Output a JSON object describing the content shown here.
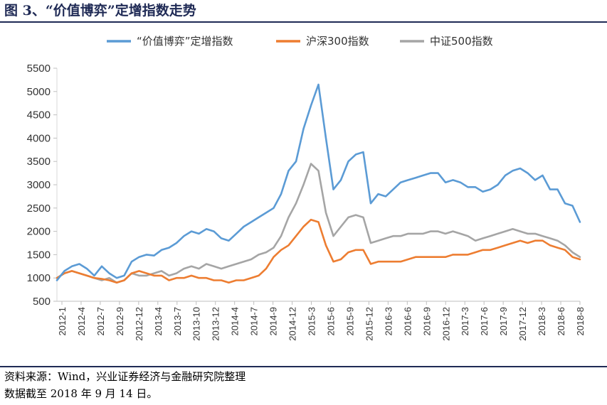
{
  "figure": {
    "title": "图 3、“价值博弈”定增指数走势",
    "source_line1": "资料来源：Wind，兴业证券经济与金融研究院整理",
    "source_line2": "数据截至 2018 年 9 月 14 日。"
  },
  "chart_data": {
    "type": "line",
    "ylim": [
      500,
      5500
    ],
    "yticks": [
      500,
      1000,
      1500,
      2000,
      2500,
      3000,
      3500,
      4000,
      4500,
      5000,
      5500
    ],
    "xticks": [
      "2012-1",
      "2012-4",
      "2012-7",
      "2012-9",
      "2012-12",
      "2013-4",
      "2013-7",
      "2013-10",
      "2013-12",
      "2014-4",
      "2014-7",
      "2014-9",
      "2014-12",
      "2015-3",
      "2015-6",
      "2015-9",
      "2015-12",
      "2016-3",
      "2016-6",
      "2016-9",
      "2016-12",
      "2017-3",
      "2017-6",
      "2017-9",
      "2017-12",
      "2018-3",
      "2018-6",
      "2018-8"
    ],
    "xlabel": "",
    "ylabel": "",
    "legend_position": "top",
    "grid": false,
    "series": [
      {
        "name": "“价值博弈”定增指数",
        "color": "#5B9BD5",
        "points": [
          [
            0,
            950
          ],
          [
            1,
            1150
          ],
          [
            2,
            1250
          ],
          [
            3,
            1300
          ],
          [
            4,
            1200
          ],
          [
            5,
            1050
          ],
          [
            6,
            1250
          ],
          [
            7,
            1100
          ],
          [
            8,
            1000
          ],
          [
            9,
            1050
          ],
          [
            10,
            1350
          ],
          [
            11,
            1450
          ],
          [
            12,
            1500
          ],
          [
            13,
            1480
          ],
          [
            14,
            1600
          ],
          [
            15,
            1650
          ],
          [
            16,
            1750
          ],
          [
            17,
            1900
          ],
          [
            18,
            2000
          ],
          [
            19,
            1950
          ],
          [
            20,
            2050
          ],
          [
            21,
            2000
          ],
          [
            22,
            1850
          ],
          [
            23,
            1800
          ],
          [
            24,
            1950
          ],
          [
            25,
            2100
          ],
          [
            26,
            2200
          ],
          [
            27,
            2300
          ],
          [
            28,
            2400
          ],
          [
            29,
            2500
          ],
          [
            30,
            2800
          ],
          [
            31,
            3300
          ],
          [
            32,
            3500
          ],
          [
            33,
            4200
          ],
          [
            34,
            4700
          ],
          [
            35,
            5150
          ],
          [
            36,
            4000
          ],
          [
            37,
            2900
          ],
          [
            38,
            3100
          ],
          [
            39,
            3500
          ],
          [
            40,
            3650
          ],
          [
            41,
            3700
          ],
          [
            42,
            2600
          ],
          [
            43,
            2800
          ],
          [
            44,
            2750
          ],
          [
            45,
            2900
          ],
          [
            46,
            3050
          ],
          [
            47,
            3100
          ],
          [
            48,
            3150
          ],
          [
            49,
            3200
          ],
          [
            50,
            3250
          ],
          [
            51,
            3250
          ],
          [
            52,
            3050
          ],
          [
            53,
            3100
          ],
          [
            54,
            3050
          ],
          [
            55,
            2950
          ],
          [
            56,
            2950
          ],
          [
            57,
            2850
          ],
          [
            58,
            2900
          ],
          [
            59,
            3000
          ],
          [
            60,
            3200
          ],
          [
            61,
            3300
          ],
          [
            62,
            3350
          ],
          [
            63,
            3250
          ],
          [
            64,
            3100
          ],
          [
            65,
            3200
          ],
          [
            66,
            2900
          ],
          [
            67,
            2900
          ],
          [
            68,
            2600
          ],
          [
            69,
            2550
          ],
          [
            70,
            2200
          ]
        ]
      },
      {
        "name": "沪深300指数",
        "color": "#ED7D31",
        "points": [
          [
            0,
            1000
          ],
          [
            1,
            1100
          ],
          [
            2,
            1150
          ],
          [
            3,
            1100
          ],
          [
            4,
            1050
          ],
          [
            5,
            1000
          ],
          [
            6,
            980
          ],
          [
            7,
            950
          ],
          [
            8,
            900
          ],
          [
            9,
            950
          ],
          [
            10,
            1100
          ],
          [
            11,
            1150
          ],
          [
            12,
            1100
          ],
          [
            13,
            1050
          ],
          [
            14,
            1050
          ],
          [
            15,
            950
          ],
          [
            16,
            1000
          ],
          [
            17,
            1000
          ],
          [
            18,
            1050
          ],
          [
            19,
            1000
          ],
          [
            20,
            1000
          ],
          [
            21,
            950
          ],
          [
            22,
            950
          ],
          [
            23,
            900
          ],
          [
            24,
            950
          ],
          [
            25,
            950
          ],
          [
            26,
            1000
          ],
          [
            27,
            1050
          ],
          [
            28,
            1200
          ],
          [
            29,
            1450
          ],
          [
            30,
            1600
          ],
          [
            31,
            1700
          ],
          [
            32,
            1900
          ],
          [
            33,
            2100
          ],
          [
            34,
            2250
          ],
          [
            35,
            2200
          ],
          [
            36,
            1700
          ],
          [
            37,
            1350
          ],
          [
            38,
            1400
          ],
          [
            39,
            1550
          ],
          [
            40,
            1600
          ],
          [
            41,
            1600
          ],
          [
            42,
            1300
          ],
          [
            43,
            1350
          ],
          [
            44,
            1350
          ],
          [
            45,
            1350
          ],
          [
            46,
            1350
          ],
          [
            47,
            1400
          ],
          [
            48,
            1450
          ],
          [
            49,
            1450
          ],
          [
            50,
            1450
          ],
          [
            51,
            1450
          ],
          [
            52,
            1450
          ],
          [
            53,
            1500
          ],
          [
            54,
            1500
          ],
          [
            55,
            1500
          ],
          [
            56,
            1550
          ],
          [
            57,
            1600
          ],
          [
            58,
            1600
          ],
          [
            59,
            1650
          ],
          [
            60,
            1700
          ],
          [
            61,
            1750
          ],
          [
            62,
            1800
          ],
          [
            63,
            1750
          ],
          [
            64,
            1800
          ],
          [
            65,
            1800
          ],
          [
            66,
            1700
          ],
          [
            67,
            1650
          ],
          [
            68,
            1600
          ],
          [
            69,
            1450
          ],
          [
            70,
            1400
          ]
        ]
      },
      {
        "name": "中证500指数",
        "color": "#A5A5A5",
        "points": [
          [
            0,
            1000
          ],
          [
            1,
            1100
          ],
          [
            2,
            1150
          ],
          [
            3,
            1100
          ],
          [
            4,
            1050
          ],
          [
            5,
            1000
          ],
          [
            6,
            950
          ],
          [
            7,
            1000
          ],
          [
            8,
            900
          ],
          [
            9,
            950
          ],
          [
            10,
            1100
          ],
          [
            11,
            1050
          ],
          [
            12,
            1050
          ],
          [
            13,
            1100
          ],
          [
            14,
            1150
          ],
          [
            15,
            1050
          ],
          [
            16,
            1100
          ],
          [
            17,
            1200
          ],
          [
            18,
            1250
          ],
          [
            19,
            1200
          ],
          [
            20,
            1300
          ],
          [
            21,
            1250
          ],
          [
            22,
            1200
          ],
          [
            23,
            1250
          ],
          [
            24,
            1300
          ],
          [
            25,
            1350
          ],
          [
            26,
            1400
          ],
          [
            27,
            1500
          ],
          [
            28,
            1550
          ],
          [
            29,
            1650
          ],
          [
            30,
            1900
          ],
          [
            31,
            2300
          ],
          [
            32,
            2600
          ],
          [
            33,
            3000
          ],
          [
            34,
            3450
          ],
          [
            35,
            3300
          ],
          [
            36,
            2400
          ],
          [
            37,
            1900
          ],
          [
            38,
            2100
          ],
          [
            39,
            2300
          ],
          [
            40,
            2350
          ],
          [
            41,
            2300
          ],
          [
            42,
            1750
          ],
          [
            43,
            1800
          ],
          [
            44,
            1850
          ],
          [
            45,
            1900
          ],
          [
            46,
            1900
          ],
          [
            47,
            1950
          ],
          [
            48,
            1950
          ],
          [
            49,
            1950
          ],
          [
            50,
            2000
          ],
          [
            51,
            2000
          ],
          [
            52,
            1950
          ],
          [
            53,
            2000
          ],
          [
            54,
            1950
          ],
          [
            55,
            1900
          ],
          [
            56,
            1800
          ],
          [
            57,
            1850
          ],
          [
            58,
            1900
          ],
          [
            59,
            1950
          ],
          [
            60,
            2000
          ],
          [
            61,
            2050
          ],
          [
            62,
            2000
          ],
          [
            63,
            1950
          ],
          [
            64,
            1950
          ],
          [
            65,
            1900
          ],
          [
            66,
            1850
          ],
          [
            67,
            1800
          ],
          [
            68,
            1700
          ],
          [
            69,
            1550
          ],
          [
            70,
            1450
          ]
        ]
      }
    ]
  }
}
